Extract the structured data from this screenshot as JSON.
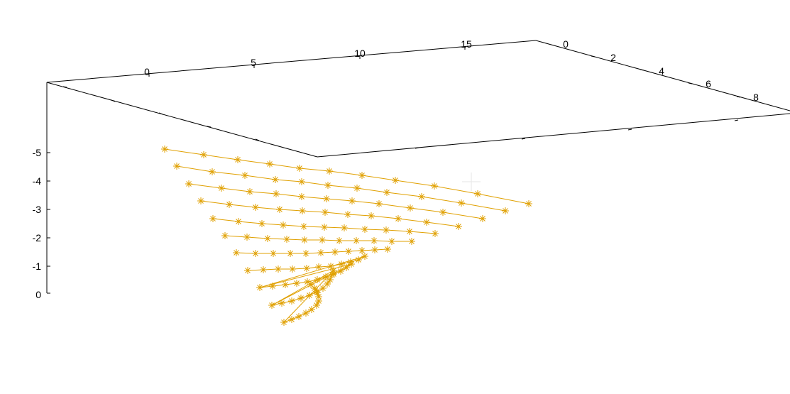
{
  "chart_data": {
    "type": "scatter",
    "title": "",
    "xlabel": "",
    "ylabel": "",
    "zlabel": "",
    "series_color": "#e0a000",
    "x_ticks": [
      "0",
      "5",
      "10",
      "15"
    ],
    "y_ticks": [
      "0",
      "2",
      "4",
      "6",
      "8"
    ],
    "z_ticks": [
      "-5",
      "-4",
      "-3",
      "-2",
      "-1",
      "0"
    ],
    "xlim": [
      -2,
      19
    ],
    "ylim": [
      0,
      10
    ],
    "zlim": [
      0,
      -5.5
    ],
    "rows": [
      {
        "z": -5.1,
        "x_start": 0,
        "x_step": 1
      },
      {
        "z": -4.6,
        "x_start": 0,
        "x_step": 1
      },
      {
        "z": -4.1,
        "x_start": 0,
        "x_step": 1
      },
      {
        "z": -3.6,
        "x_start": 0,
        "x_step": 1
      },
      {
        "z": -3.1,
        "x_start": 0,
        "x_step": 1
      },
      {
        "z": -2.6,
        "x_start": 0,
        "x_step": 1
      },
      {
        "z": -2.1,
        "x_start": 0,
        "x_step": 1
      },
      {
        "z": -1.6,
        "x_start": 0,
        "x_step": 1
      },
      {
        "z": -1.1,
        "x_start": 0,
        "x_step": 1
      },
      {
        "z": -0.6,
        "x_start": 0,
        "x_step": 1
      },
      {
        "z": -0.1,
        "x_start": 0,
        "x_step": 1
      }
    ],
    "screen_rows": [
      [
        [
          232,
          210
        ],
        [
          287,
          218
        ],
        [
          335,
          225
        ],
        [
          380,
          231
        ],
        [
          422,
          237
        ],
        [
          464,
          241
        ],
        [
          510,
          247
        ],
        [
          557,
          254
        ],
        [
          612,
          262
        ],
        [
          673,
          273
        ],
        [
          745,
          287
        ]
      ],
      [
        [
          249,
          234
        ],
        [
          299,
          242
        ],
        [
          345,
          247
        ],
        [
          388,
          253
        ],
        [
          425,
          256
        ],
        [
          462,
          261
        ],
        [
          503,
          265
        ],
        [
          545,
          271
        ],
        [
          594,
          277
        ],
        [
          650,
          286
        ],
        [
          712,
          297
        ]
      ],
      [
        [
          266,
          259
        ],
        [
          312,
          265
        ],
        [
          352,
          270
        ],
        [
          389,
          273
        ],
        [
          425,
          277
        ],
        [
          460,
          280
        ],
        [
          496,
          283
        ],
        [
          534,
          287
        ],
        [
          578,
          293
        ],
        [
          624,
          299
        ],
        [
          680,
          308
        ]
      ],
      [
        [
          283,
          283
        ],
        [
          323,
          288
        ],
        [
          360,
          292
        ],
        [
          394,
          295
        ],
        [
          426,
          297
        ],
        [
          458,
          299
        ],
        [
          490,
          302
        ],
        [
          523,
          304
        ],
        [
          561,
          308
        ],
        [
          601,
          313
        ],
        [
          646,
          319
        ]
      ],
      [
        [
          300,
          308
        ],
        [
          336,
          312
        ],
        [
          369,
          315
        ],
        [
          399,
          317
        ],
        [
          428,
          319
        ],
        [
          457,
          320
        ],
        [
          485,
          321
        ],
        [
          514,
          323
        ],
        [
          544,
          324
        ],
        [
          577,
          326
        ],
        [
          613,
          329
        ]
      ],
      [
        [
          317,
          332
        ],
        [
          348,
          334
        ],
        [
          377,
          336
        ],
        [
          404,
          337
        ],
        [
          429,
          338
        ],
        [
          454,
          338
        ],
        [
          478,
          339
        ],
        [
          502,
          339
        ],
        [
          527,
          339
        ],
        [
          552,
          340
        ],
        [
          580,
          340
        ]
      ],
      [
        [
          333,
          356
        ],
        [
          360,
          357
        ],
        [
          385,
          357
        ],
        [
          409,
          357
        ],
        [
          431,
          357
        ],
        [
          452,
          356
        ],
        [
          472,
          355
        ],
        [
          491,
          354
        ],
        [
          510,
          353
        ],
        [
          528,
          352
        ],
        [
          546,
          351
        ]
      ],
      [
        [
          349,
          381
        ],
        [
          371,
          380
        ],
        [
          392,
          379
        ],
        [
          412,
          379
        ],
        [
          432,
          378
        ],
        [
          449,
          376
        ],
        [
          466,
          375
        ],
        [
          481,
          372
        ],
        [
          494,
          369
        ],
        [
          505,
          366
        ],
        [
          514,
          361
        ]
      ],
      [
        [
          366,
          405
        ],
        [
          384,
          403
        ],
        [
          402,
          401
        ],
        [
          418,
          399
        ],
        [
          433,
          397
        ],
        [
          447,
          394
        ],
        [
          459,
          390
        ],
        [
          470,
          386
        ],
        [
          480,
          382
        ],
        [
          488,
          377
        ],
        [
          495,
          372
        ]
      ],
      [
        [
          383,
          430
        ],
        [
          397,
          427
        ],
        [
          411,
          424
        ],
        [
          424,
          420
        ],
        [
          436,
          416
        ],
        [
          446,
          411
        ],
        [
          455,
          406
        ],
        [
          461,
          400
        ],
        [
          465,
          394
        ],
        [
          468,
          387
        ],
        [
          470,
          381
        ]
      ],
      [
        [
          400,
          454
        ],
        [
          411,
          450
        ],
        [
          421,
          446
        ],
        [
          431,
          441
        ],
        [
          439,
          436
        ],
        [
          446,
          430
        ],
        [
          449,
          424
        ],
        [
          449,
          418
        ],
        [
          447,
          412
        ],
        [
          443,
          406
        ],
        [
          438,
          401
        ]
      ]
    ]
  }
}
